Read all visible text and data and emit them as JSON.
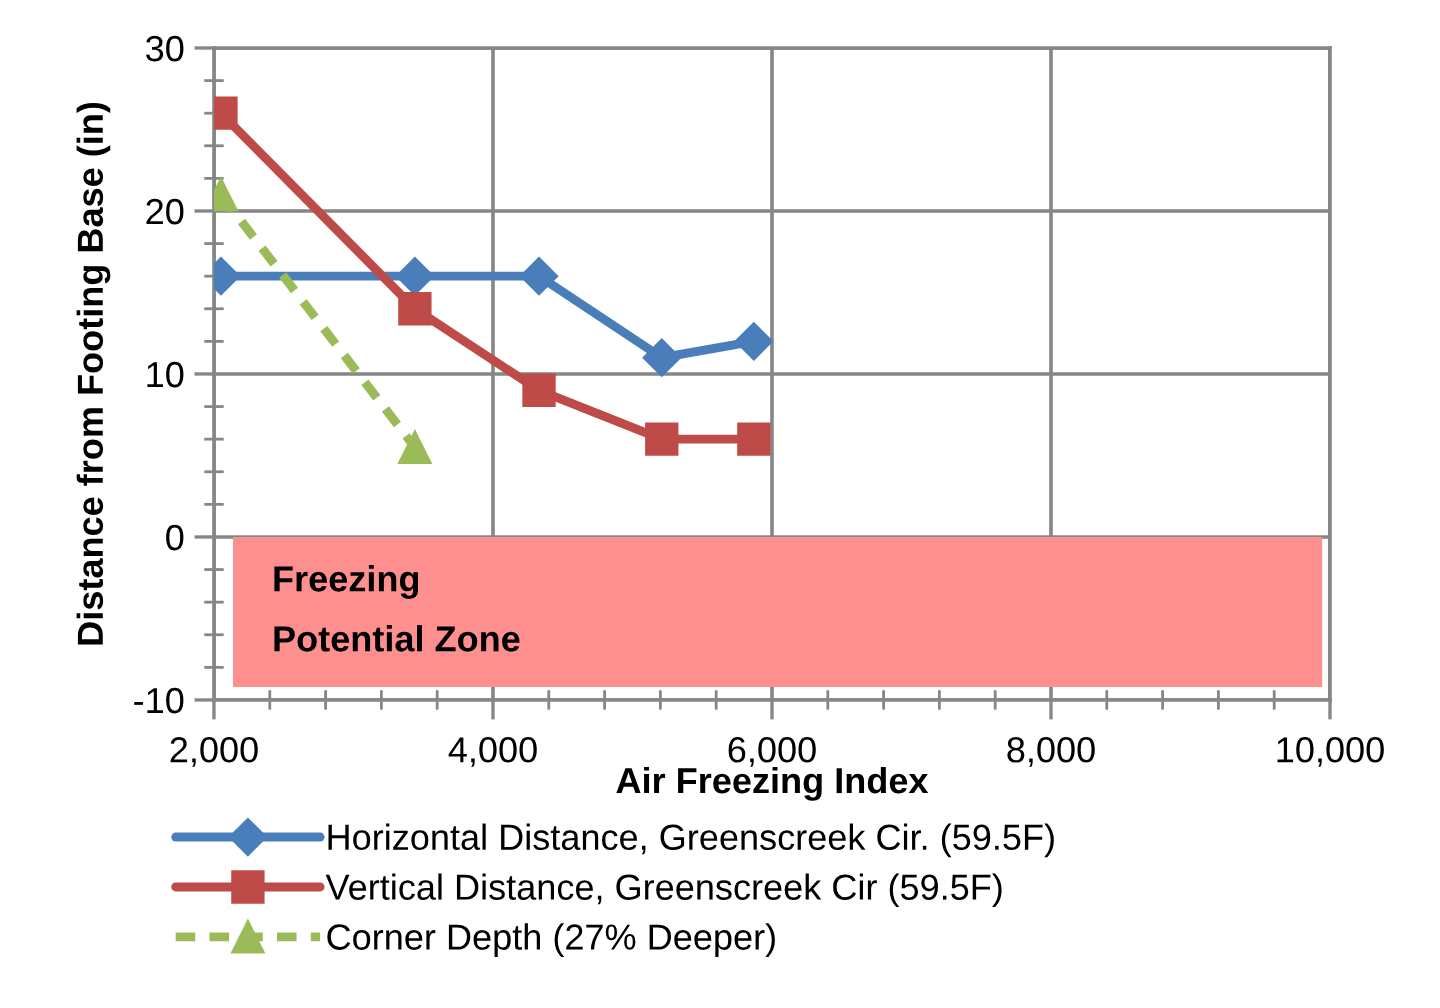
{
  "chart_data": {
    "type": "line",
    "xlabel": "Air Freezing Index",
    "ylabel": "Distance from Footing Base (in)",
    "x": [
      2050,
      3440,
      4330,
      5210,
      5870
    ],
    "series": [
      {
        "name": "Horizontal Distance, Greenscreek Cir. (59.5F)",
        "color": "#4a7ebb",
        "marker": "diamond",
        "line_style": "solid",
        "values": [
          16,
          16,
          16,
          11,
          12
        ]
      },
      {
        "name": "Vertical Distance, Greenscreek Cir (59.5F)",
        "color": "#be4b48",
        "marker": "square",
        "line_style": "solid",
        "values": [
          26,
          14,
          9,
          6,
          6
        ]
      },
      {
        "name": "Corner Depth (27% Deeper)",
        "color": "#9bbb59",
        "marker": "triangle",
        "line_style": "dashed",
        "values": [
          21,
          5.5,
          null,
          null,
          null
        ]
      }
    ],
    "xlim": [
      2000,
      10000
    ],
    "xticks": [
      {
        "value": 2000,
        "label": "2,000"
      },
      {
        "value": 4000,
        "label": "4,000"
      },
      {
        "value": 6000,
        "label": "6,000"
      },
      {
        "value": 8000,
        "label": "8,000"
      },
      {
        "value": 10000,
        "label": "10,000"
      }
    ],
    "ylim": [
      -10,
      30
    ],
    "yticks": [
      -10,
      0,
      10,
      20,
      30
    ],
    "bands": [
      {
        "axis": "y",
        "from": -9.2,
        "to": 0,
        "label": "Freezing\nPotential Zone",
        "color": "#fd8f8f"
      }
    ],
    "grid": true,
    "legend": "bottom"
  }
}
